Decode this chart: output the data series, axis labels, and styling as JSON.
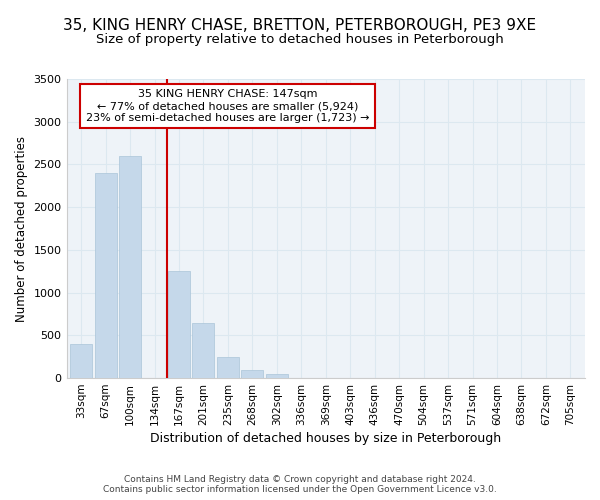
{
  "title": "35, KING HENRY CHASE, BRETTON, PETERBOROUGH, PE3 9XE",
  "subtitle": "Size of property relative to detached houses in Peterborough",
  "xlabel": "Distribution of detached houses by size in Peterborough",
  "ylabel": "Number of detached properties",
  "annotation_line1": "35 KING HENRY CHASE: 147sqm",
  "annotation_line2": "← 77% of detached houses are smaller (5,924)",
  "annotation_line3": "23% of semi-detached houses are larger (1,723) →",
  "categories": [
    "33sqm",
    "67sqm",
    "100sqm",
    "134sqm",
    "167sqm",
    "201sqm",
    "235sqm",
    "268sqm",
    "302sqm",
    "336sqm",
    "369sqm",
    "403sqm",
    "436sqm",
    "470sqm",
    "504sqm",
    "537sqm",
    "571sqm",
    "604sqm",
    "638sqm",
    "672sqm",
    "705sqm"
  ],
  "values": [
    400,
    2400,
    2600,
    0,
    1250,
    650,
    250,
    100,
    50,
    0,
    0,
    0,
    0,
    0,
    0,
    0,
    0,
    0,
    0,
    0,
    0
  ],
  "bar_color": "#c5d8ea",
  "bar_edge_color": "#aac4d8",
  "annotation_box_color": "#cc0000",
  "vline_color": "#cc0000",
  "vline_x": 3.5,
  "grid_color": "#dce8f0",
  "background_color": "#eef3f8",
  "footer": "Contains HM Land Registry data © Crown copyright and database right 2024.\nContains public sector information licensed under the Open Government Licence v3.0.",
  "ylim": [
    0,
    3500
  ],
  "title_fontsize": 11,
  "subtitle_fontsize": 9.5
}
